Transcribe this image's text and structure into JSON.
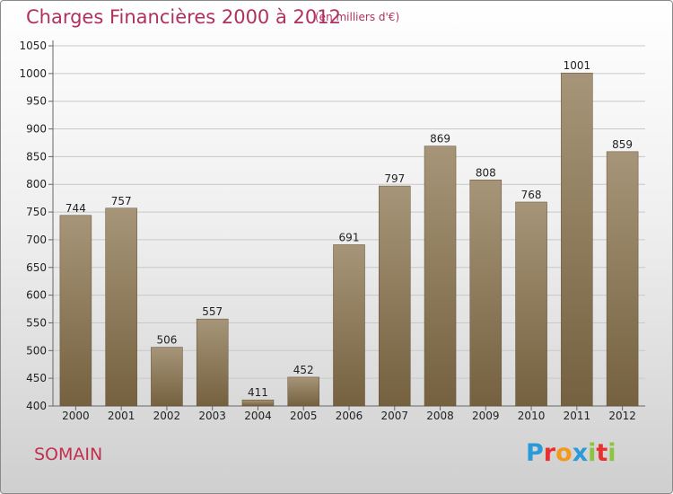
{
  "header": {
    "title": "Charges Financières 2000 à 2012",
    "subtitle": "(en milliers d'€)"
  },
  "footer": {
    "city": "SOMAIN",
    "logo": [
      "P",
      "r",
      "o",
      "x",
      "i",
      "t",
      "i"
    ],
    "logo_colors": [
      "#2a9ad8",
      "#e8312f",
      "#f39a1e",
      "#2a9ad8",
      "#8cc43f",
      "#e8312f",
      "#8cc43f"
    ]
  },
  "colors": {
    "bar_top": "#a69578",
    "bar_bottom": "#75613f",
    "title": "#b03060"
  },
  "chart_data": {
    "type": "bar",
    "title": "Charges Financières 2000 à 2012",
    "subtitle": "(en milliers d'€)",
    "categories": [
      "2000",
      "2001",
      "2002",
      "2003",
      "2004",
      "2005",
      "2006",
      "2007",
      "2008",
      "2009",
      "2010",
      "2011",
      "2012"
    ],
    "values": [
      744,
      757,
      506,
      557,
      411,
      452,
      691,
      797,
      869,
      808,
      768,
      1001,
      859
    ],
    "ylim": [
      400,
      1050
    ],
    "yticks": [
      400,
      450,
      500,
      550,
      600,
      650,
      700,
      750,
      800,
      850,
      900,
      950,
      1000,
      1050
    ],
    "grid": true
  }
}
